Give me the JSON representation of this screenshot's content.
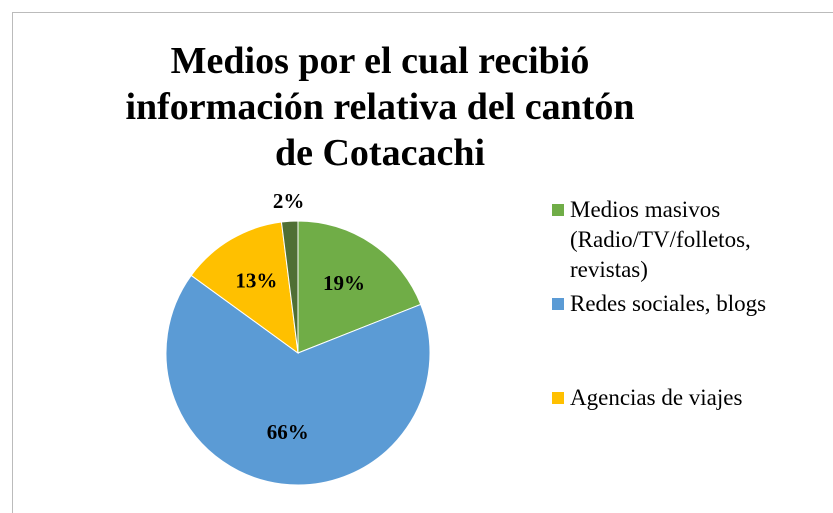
{
  "chart_data": {
    "type": "pie",
    "title": "Medios por el cual recibió información relativa del cantón de Cotacachi",
    "categories": [
      "Medios masivos (Radio/TV/folletos, revistas)",
      "Redes sociales, blogs",
      "Agencias de viajes",
      null
    ],
    "values": [
      19,
      66,
      13,
      2
    ],
    "value_labels": [
      "19%",
      "66%",
      "13%",
      "2%"
    ],
    "colors": [
      "#70ad47",
      "#5b9bd5",
      "#ffc000",
      "#4f6f34"
    ],
    "legend": "right"
  }
}
